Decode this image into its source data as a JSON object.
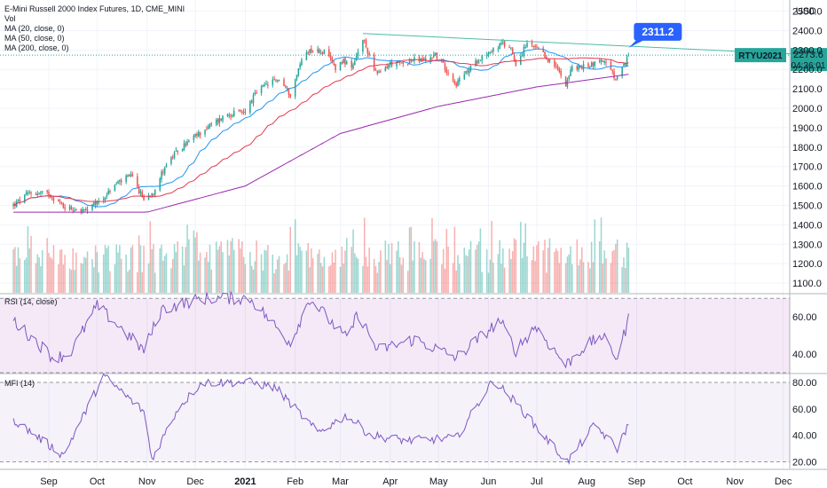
{
  "legend": {
    "title": "E-Mini Russell 2000 Index Futures, 1D, CME_MINI",
    "vol": "Vol",
    "ma20": "MA (20, close, 0)",
    "ma50": "MA (50, close, 0)",
    "ma200": "MA (200, close, 0)"
  },
  "currency": "USD",
  "rsi_label": "RSI (14, close)",
  "mfi_label": "MFI (14)",
  "price_callout": "2311.2",
  "symbol_tag": "RTYU2021",
  "last_price": "2273.6",
  "countdown": "04:36:01",
  "colors": {
    "up": "#26a69a",
    "down": "#ef5350",
    "ma20": "#2196f3",
    "ma50": "#e53950",
    "ma200": "#9c27b0",
    "trend": "#4dbba8",
    "callout": "#2962ff",
    "rsi": "#7e57c2",
    "mfi": "#7e57c2"
  },
  "chart_data": [
    {
      "type": "candlestick",
      "title": "E-Mini Russell 2000 Index Futures, 1D, CME_MINI",
      "x_ticks": [
        "Sep",
        "Oct",
        "Nov",
        "Dec",
        "2021",
        "Feb",
        "Mar",
        "Apr",
        "May",
        "Jun",
        "Jul",
        "Aug",
        "Sep",
        "Oct",
        "Nov",
        "Dec"
      ],
      "y_ticks": [
        1100,
        1200,
        1300,
        1400,
        1500,
        1600,
        1700,
        1800,
        1900,
        2000,
        2100,
        2200,
        2300,
        2400,
        2500
      ],
      "ylim": [
        1050,
        2530
      ],
      "unit": "USD",
      "close_anchors": [
        [
          "2020-08-10",
          1500
        ],
        [
          "2020-08-20",
          1565
        ],
        [
          "2020-09-01",
          1560
        ],
        [
          "2020-09-10",
          1495
        ],
        [
          "2020-09-24",
          1470
        ],
        [
          "2020-10-05",
          1540
        ],
        [
          "2020-10-14",
          1620
        ],
        [
          "2020-10-22",
          1650
        ],
        [
          "2020-10-30",
          1530
        ],
        [
          "2020-11-05",
          1570
        ],
        [
          "2020-11-12",
          1700
        ],
        [
          "2020-11-20",
          1780
        ],
        [
          "2020-11-30",
          1850
        ],
        [
          "2020-12-10",
          1910
        ],
        [
          "2020-12-21",
          1970
        ],
        [
          "2020-12-31",
          1980
        ],
        [
          "2021-01-08",
          2080
        ],
        [
          "2021-01-14",
          2120
        ],
        [
          "2021-01-22",
          2150
        ],
        [
          "2021-01-29",
          2070
        ],
        [
          "2021-02-05",
          2250
        ],
        [
          "2021-02-09",
          2300
        ],
        [
          "2021-02-19",
          2290
        ],
        [
          "2021-02-26",
          2210
        ],
        [
          "2021-03-03",
          2250
        ],
        [
          "2021-03-08",
          2195
        ],
        [
          "2021-03-15",
          2355
        ],
        [
          "2021-03-24",
          2170
        ],
        [
          "2021-04-01",
          2230
        ],
        [
          "2021-04-08",
          2230
        ],
        [
          "2021-04-16",
          2250
        ],
        [
          "2021-04-23",
          2245
        ],
        [
          "2021-04-29",
          2280
        ],
        [
          "2021-05-05",
          2210
        ],
        [
          "2021-05-12",
          2125
        ],
        [
          "2021-05-20",
          2200
        ],
        [
          "2021-05-28",
          2270
        ],
        [
          "2021-06-04",
          2300
        ],
        [
          "2021-06-09",
          2330
        ],
        [
          "2021-06-15",
          2310
        ],
        [
          "2021-06-18",
          2230
        ],
        [
          "2021-06-25",
          2330
        ],
        [
          "2021-07-01",
          2305
        ],
        [
          "2021-07-08",
          2250
        ],
        [
          "2021-07-14",
          2200
        ],
        [
          "2021-07-19",
          2130
        ],
        [
          "2021-07-23",
          2210
        ],
        [
          "2021-07-28",
          2210
        ],
        [
          "2021-08-05",
          2230
        ],
        [
          "2021-08-11",
          2250
        ],
        [
          "2021-08-17",
          2180
        ],
        [
          "2021-08-19",
          2140
        ],
        [
          "2021-08-24",
          2215
        ],
        [
          "2021-08-27",
          2273.6
        ]
      ],
      "trendline": {
        "from": [
          "2021-03-15",
          2385
        ],
        "to": [
          "2021-12-31",
          2270
        ],
        "label": "2311.2"
      },
      "moving_averages": [
        "MA 20",
        "MA 50",
        "MA 200"
      ],
      "ma200_anchors": [
        [
          "2020-08-10",
          1465
        ],
        [
          "2020-11-01",
          1465
        ],
        [
          "2021-01-01",
          1600
        ],
        [
          "2021-03-01",
          1870
        ],
        [
          "2021-05-01",
          2010
        ],
        [
          "2021-07-01",
          2110
        ],
        [
          "2021-08-27",
          2175
        ]
      ],
      "volume_visible": true
    },
    {
      "type": "line",
      "title": "RSI (14, close)",
      "y_ticks": [
        40,
        60
      ],
      "bands": [
        30,
        70
      ],
      "ylim": [
        30,
        72
      ],
      "x_range": [
        "2020-08-10",
        "2021-08-27"
      ],
      "anchors": [
        [
          "2020-08-10",
          58
        ],
        [
          "2020-09-04",
          38
        ],
        [
          "2020-09-14",
          40
        ],
        [
          "2020-10-01",
          66
        ],
        [
          "2020-10-30",
          42
        ],
        [
          "2020-11-10",
          64
        ],
        [
          "2020-12-05",
          70
        ],
        [
          "2021-01-04",
          70
        ],
        [
          "2021-01-29",
          46
        ],
        [
          "2021-02-10",
          70
        ],
        [
          "2021-03-05",
          48
        ],
        [
          "2021-03-12",
          62
        ],
        [
          "2021-03-24",
          42
        ],
        [
          "2021-04-16",
          48
        ],
        [
          "2021-05-12",
          38
        ],
        [
          "2021-06-08",
          58
        ],
        [
          "2021-06-18",
          42
        ],
        [
          "2021-06-30",
          55
        ],
        [
          "2021-07-19",
          34
        ],
        [
          "2021-07-28",
          42
        ],
        [
          "2021-08-10",
          50
        ],
        [
          "2021-08-20",
          38
        ],
        [
          "2021-08-27",
          59
        ]
      ]
    },
    {
      "type": "line",
      "title": "MFI (14)",
      "y_ticks": [
        20,
        40,
        60,
        80
      ],
      "bands": [
        20,
        80
      ],
      "ylim": [
        15,
        86
      ],
      "x_range": [
        "2020-08-10",
        "2021-08-27"
      ],
      "anchors": [
        [
          "2020-08-10",
          52
        ],
        [
          "2020-09-10",
          25
        ],
        [
          "2020-10-05",
          85
        ],
        [
          "2020-10-30",
          58
        ],
        [
          "2020-11-04",
          22
        ],
        [
          "2020-11-20",
          60
        ],
        [
          "2020-12-05",
          80
        ],
        [
          "2021-01-04",
          80
        ],
        [
          "2021-01-20",
          76
        ],
        [
          "2021-02-15",
          42
        ],
        [
          "2021-03-05",
          55
        ],
        [
          "2021-03-20",
          40
        ],
        [
          "2021-04-12",
          36
        ],
        [
          "2021-05-12",
          38
        ],
        [
          "2021-06-04",
          82
        ],
        [
          "2021-06-20",
          62
        ],
        [
          "2021-07-05",
          40
        ],
        [
          "2021-07-20",
          20
        ],
        [
          "2021-08-06",
          48
        ],
        [
          "2021-08-20",
          30
        ],
        [
          "2021-08-27",
          49
        ]
      ]
    }
  ]
}
